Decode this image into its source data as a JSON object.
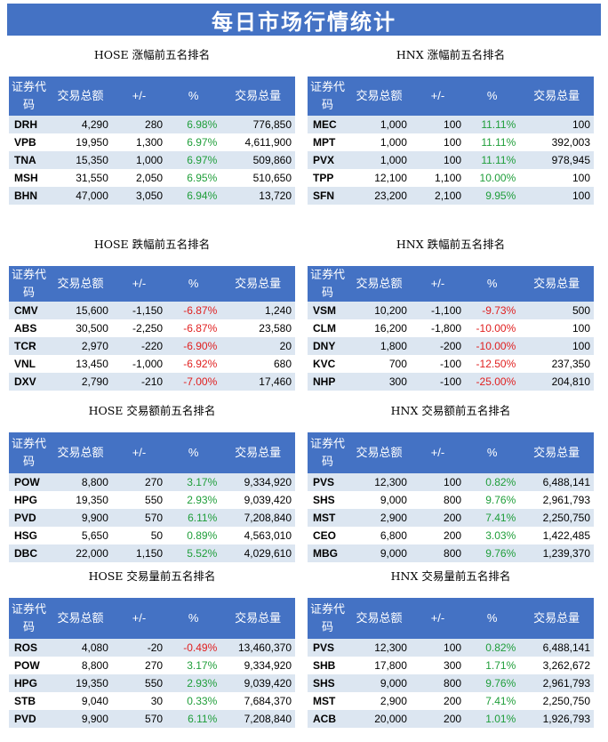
{
  "title": "每日市场行情统计",
  "headers": {
    "code": "证券代码",
    "price": "交易总额",
    "change": "+/-",
    "pct": "%",
    "volume": "交易总量"
  },
  "tables": [
    {
      "title": "HOSE 涨幅前五名排名",
      "rows": [
        [
          "DRH",
          "4,290",
          "280",
          "6.98%",
          "776,850"
        ],
        [
          "VPB",
          "19,950",
          "1,300",
          "6.97%",
          "4,611,900"
        ],
        [
          "TNA",
          "15,350",
          "1,000",
          "6.97%",
          "509,860"
        ],
        [
          "MSH",
          "31,550",
          "2,050",
          "6.95%",
          "510,650"
        ],
        [
          "BHN",
          "47,000",
          "3,050",
          "6.94%",
          "13,720"
        ]
      ]
    },
    {
      "title": "HNX 涨幅前五名排名",
      "rows": [
        [
          "MEC",
          "1,000",
          "100",
          "11.11%",
          "100"
        ],
        [
          "MPT",
          "1,000",
          "100",
          "11.11%",
          "392,003"
        ],
        [
          "PVX",
          "1,000",
          "100",
          "11.11%",
          "978,945"
        ],
        [
          "TPP",
          "12,100",
          "1,100",
          "10.00%",
          "100"
        ],
        [
          "SFN",
          "23,200",
          "2,100",
          "9.95%",
          "100"
        ]
      ]
    },
    {
      "title": "HOSE 跌幅前五名排名",
      "rows": [
        [
          "CMV",
          "15,600",
          "-1,150",
          "-6.87%",
          "1,240"
        ],
        [
          "ABS",
          "30,500",
          "-2,250",
          "-6.87%",
          "23,580"
        ],
        [
          "TCR",
          "2,970",
          "-220",
          "-6.90%",
          "20"
        ],
        [
          "VNL",
          "13,450",
          "-1,000",
          "-6.92%",
          "680"
        ],
        [
          "DXV",
          "2,790",
          "-210",
          "-7.00%",
          "17,460"
        ]
      ]
    },
    {
      "title": "HNX 跌幅前五名排名",
      "rows": [
        [
          "VSM",
          "10,200",
          "-1,100",
          "-9.73%",
          "500"
        ],
        [
          "CLM",
          "16,200",
          "-1,800",
          "-10.00%",
          "100"
        ],
        [
          "DNY",
          "1,800",
          "-200",
          "-10.00%",
          "100"
        ],
        [
          "KVC",
          "700",
          "-100",
          "-12.50%",
          "237,350"
        ],
        [
          "NHP",
          "300",
          "-100",
          "-25.00%",
          "204,810"
        ]
      ]
    },
    {
      "title": "HOSE 交易额前五名排名",
      "rows": [
        [
          "POW",
          "8,800",
          "270",
          "3.17%",
          "9,334,920"
        ],
        [
          "HPG",
          "19,350",
          "550",
          "2.93%",
          "9,039,420"
        ],
        [
          "PVD",
          "9,900",
          "570",
          "6.11%",
          "7,208,840"
        ],
        [
          "HSG",
          "5,650",
          "50",
          "0.89%",
          "4,563,010"
        ],
        [
          "DBC",
          "22,000",
          "1,150",
          "5.52%",
          "4,029,610"
        ]
      ]
    },
    {
      "title": "HNX 交易额前五名排名",
      "rows": [
        [
          "PVS",
          "12,300",
          "100",
          "0.82%",
          "6,488,141"
        ],
        [
          "SHS",
          "9,000",
          "800",
          "9.76%",
          "2,961,793"
        ],
        [
          "MST",
          "2,900",
          "200",
          "7.41%",
          "2,250,750"
        ],
        [
          "CEO",
          "6,800",
          "200",
          "3.03%",
          "1,422,485"
        ],
        [
          "MBG",
          "9,000",
          "800",
          "9.76%",
          "1,239,370"
        ]
      ]
    },
    {
      "title": "HOSE 交易量前五名排名",
      "rows": [
        [
          "ROS",
          "4,080",
          "-20",
          "-0.49%",
          "13,460,370"
        ],
        [
          "POW",
          "8,800",
          "270",
          "3.17%",
          "9,334,920"
        ],
        [
          "HPG",
          "19,350",
          "550",
          "2.93%",
          "9,039,420"
        ],
        [
          "STB",
          "9,040",
          "30",
          "0.33%",
          "7,684,370"
        ],
        [
          "PVD",
          "9,900",
          "570",
          "6.11%",
          "7,208,840"
        ]
      ]
    },
    {
      "title": "HNX 交易量前五名排名",
      "rows": [
        [
          "PVS",
          "12,300",
          "100",
          "0.82%",
          "6,488,141"
        ],
        [
          "SHB",
          "17,800",
          "300",
          "1.71%",
          "3,262,672"
        ],
        [
          "SHS",
          "9,000",
          "800",
          "9.76%",
          "2,961,793"
        ],
        [
          "MST",
          "2,900",
          "200",
          "7.41%",
          "2,250,750"
        ],
        [
          "ACB",
          "20,000",
          "200",
          "1.01%",
          "1,926,793"
        ]
      ]
    }
  ],
  "colors": {
    "header_bg": "#4472c4",
    "stripe": "#dce6f1",
    "positive": "#1f9e3a",
    "negative": "#e02020"
  }
}
